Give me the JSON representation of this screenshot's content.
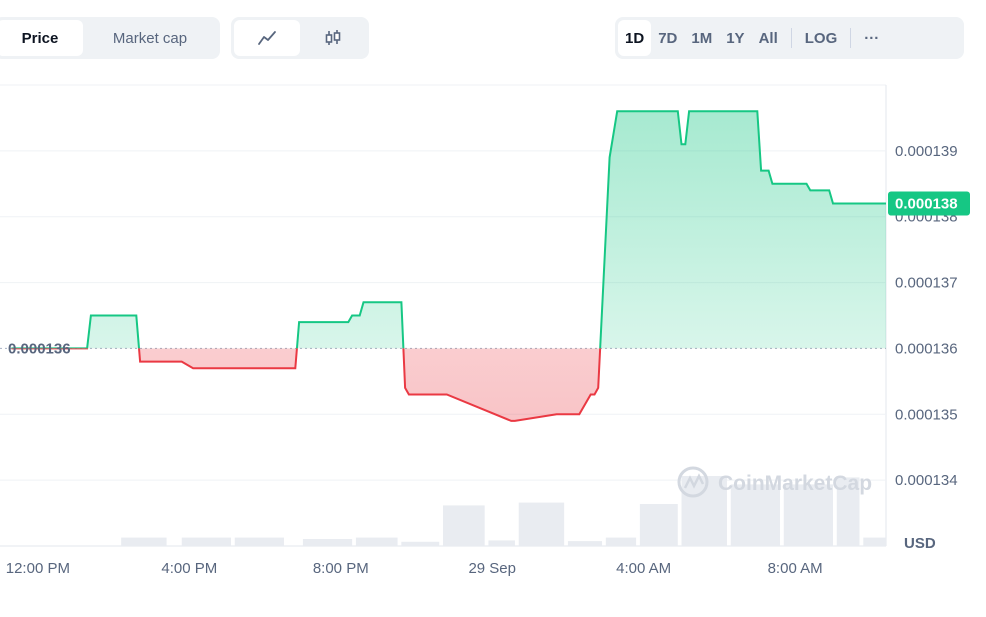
{
  "controls": {
    "metric_tabs": [
      {
        "label": "Price",
        "active": true
      },
      {
        "label": "Market cap",
        "active": false
      }
    ],
    "chart_types": [
      {
        "icon": "line-chart-icon",
        "active": true
      },
      {
        "icon": "candlestick-chart-icon",
        "active": false
      }
    ],
    "ranges": [
      {
        "label": "1D",
        "active": true
      },
      {
        "label": "7D",
        "active": false
      },
      {
        "label": "1M",
        "active": false
      },
      {
        "label": "1Y",
        "active": false
      },
      {
        "label": "All",
        "active": false
      }
    ],
    "log_label": "LOG",
    "more_label": "···"
  },
  "watermark": "CoinMarketCap",
  "colors": {
    "up": "#16c784",
    "down": "#ea3943",
    "badge": "#16c784",
    "grid": "#eff2f5",
    "volume": "#e9ecf1"
  },
  "chart_data": {
    "type": "line",
    "x_tick_labels": [
      "12:00 PM",
      "4:00 PM",
      "8:00 PM",
      "29 Sep",
      "4:00 AM",
      "8:00 AM"
    ],
    "x_ticks_hours": [
      12,
      16,
      20,
      24,
      28,
      32
    ],
    "x_range_hours": [
      11.0,
      34.4
    ],
    "y_tick_labels": [
      "0.000134",
      "0.000135",
      "0.000136",
      "0.000137",
      "0.000138",
      "0.000139"
    ],
    "y_ticks": [
      0.000134,
      0.000135,
      0.000136,
      0.000137,
      0.000138,
      0.000139
    ],
    "ylim": [
      0.000133,
      0.00014
    ],
    "y_unit": "USD",
    "baseline": 0.000136,
    "baseline_label": "0.000136",
    "current_price": 0.0001382,
    "current_price_label": "0.000138",
    "series": [
      {
        "x": [
          11.3,
          13.3,
          13.4,
          14.6,
          14.7,
          15.8,
          16.1,
          17.2,
          17.3,
          18.8,
          18.9,
          20.2,
          20.3,
          20.5,
          20.6,
          21.5,
          21.6,
          21.7,
          21.8,
          22.7,
          22.8,
          24.5,
          24.6,
          25.7,
          25.8,
          26.2,
          26.3,
          26.6,
          26.7,
          26.8,
          27.1,
          27.3,
          28.9,
          29.0,
          29.1,
          29.2,
          30.0,
          30.1,
          31.0,
          31.1,
          31.3,
          31.4,
          31.8,
          31.9,
          32.3,
          32.4,
          32.9,
          33.0,
          34.4
        ],
        "values": [
          0.000136,
          0.000136,
          0.0001365,
          0.0001365,
          0.0001358,
          0.0001358,
          0.0001357,
          0.0001357,
          0.0001357,
          0.0001357,
          0.0001364,
          0.0001364,
          0.0001365,
          0.0001365,
          0.0001367,
          0.0001367,
          0.0001367,
          0.0001354,
          0.0001353,
          0.0001353,
          0.0001353,
          0.0001349,
          0.0001349,
          0.000135,
          0.000135,
          0.000135,
          0.000135,
          0.0001353,
          0.0001353,
          0.0001354,
          0.0001389,
          0.0001396,
          0.0001396,
          0.0001391,
          0.0001391,
          0.0001396,
          0.0001396,
          0.0001396,
          0.0001396,
          0.0001387,
          0.0001387,
          0.0001385,
          0.0001385,
          0.0001385,
          0.0001385,
          0.0001384,
          0.0001384,
          0.0001382,
          0.0001382
        ]
      }
    ],
    "volume_bars": [
      {
        "x0": 14.2,
        "x1": 15.4,
        "v": 0.12
      },
      {
        "x0": 15.8,
        "x1": 17.1,
        "v": 0.12
      },
      {
        "x0": 17.2,
        "x1": 18.5,
        "v": 0.12
      },
      {
        "x0": 19.0,
        "x1": 20.3,
        "v": 0.1
      },
      {
        "x0": 20.4,
        "x1": 21.5,
        "v": 0.12
      },
      {
        "x0": 21.6,
        "x1": 22.6,
        "v": 0.06
      },
      {
        "x0": 22.7,
        "x1": 23.8,
        "v": 0.58
      },
      {
        "x0": 23.9,
        "x1": 24.6,
        "v": 0.08
      },
      {
        "x0": 24.7,
        "x1": 25.9,
        "v": 0.62
      },
      {
        "x0": 26.0,
        "x1": 26.9,
        "v": 0.07
      },
      {
        "x0": 27.0,
        "x1": 27.8,
        "v": 0.12
      },
      {
        "x0": 27.9,
        "x1": 28.9,
        "v": 0.6
      },
      {
        "x0": 29.0,
        "x1": 30.2,
        "v": 1.0
      },
      {
        "x0": 30.3,
        "x1": 31.6,
        "v": 0.88
      },
      {
        "x0": 31.7,
        "x1": 33.0,
        "v": 0.88
      },
      {
        "x0": 33.1,
        "x1": 33.7,
        "v": 0.98
      },
      {
        "x0": 33.8,
        "x1": 34.4,
        "v": 0.12
      }
    ]
  }
}
